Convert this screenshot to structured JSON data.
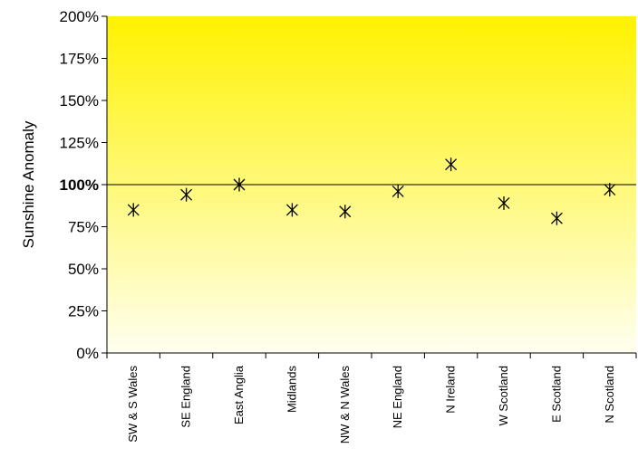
{
  "chart_data": {
    "type": "scatter",
    "ylabel": "Sunshine Anomaly",
    "xlabel": "",
    "categories": [
      "SW & S Wales",
      "SE England",
      "East Anglia",
      "Midlands",
      "NW & N Wales",
      "NE England",
      "N Ireland",
      "W Scotland",
      "E Scotland",
      "N Scotland"
    ],
    "values": [
      85,
      94,
      100,
      85,
      84,
      96,
      112,
      89,
      80,
      97
    ],
    "ylim": [
      0,
      200
    ],
    "yticks": [
      0,
      25,
      50,
      75,
      100,
      125,
      150,
      175,
      200
    ],
    "ytick_labels": [
      "0%",
      "25%",
      "50%",
      "75%",
      "100%",
      "125%",
      "150%",
      "175%",
      "200%"
    ],
    "reference_line": 100,
    "marker": "asterisk",
    "background_gradient": [
      "#fff200",
      "#fffff0"
    ],
    "grid": false,
    "legend": "none"
  }
}
